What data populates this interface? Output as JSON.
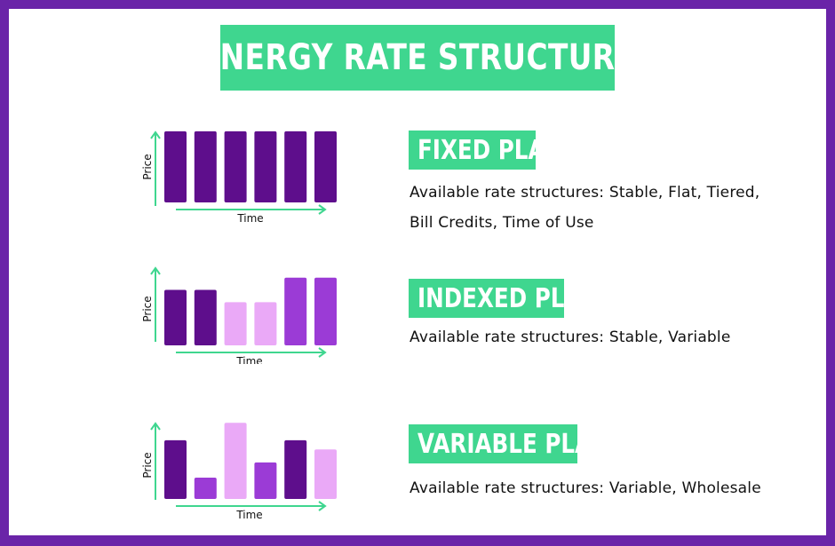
{
  "title": "ENERGY RATE STRUCTURE",
  "colors": {
    "border": "#6a24a8",
    "accent_green": "#3fd68f",
    "bar_dark": "#5e0e8c",
    "bar_mid": "#9b3bd6",
    "bar_light": "#eaa9f7"
  },
  "plans": [
    {
      "label": "FIXED PLAN",
      "description_lines": [
        "Available rate structures: Stable, Flat, Tiered,",
        "Bill Credits, Time of Use"
      ]
    },
    {
      "label": "INDEXED PLAN",
      "description_lines": [
        "Available rate structures: Stable, Variable"
      ]
    },
    {
      "label": "VARIABLE PLAN",
      "description_lines": [
        "Available rate structures: Variable, Wholesale"
      ]
    }
  ],
  "chart_data": [
    {
      "type": "bar",
      "xlabel": "Time",
      "ylabel": "Price",
      "ylim": [
        0,
        10
      ],
      "values": [
        7.7,
        7.7,
        7.7,
        7.7,
        7.7,
        7.7
      ],
      "colors": [
        "dark",
        "dark",
        "dark",
        "dark",
        "dark",
        "dark"
      ]
    },
    {
      "type": "bar",
      "xlabel": "Time",
      "ylabel": "Price",
      "ylim": [
        0,
        10
      ],
      "values": [
        7.7,
        7.7,
        6.0,
        6.0,
        9.4,
        9.4
      ],
      "colors": [
        "dark",
        "dark",
        "light",
        "light",
        "mid",
        "mid"
      ]
    },
    {
      "type": "bar",
      "xlabel": "Time",
      "ylabel": "Price",
      "ylim": [
        0,
        10
      ],
      "values": [
        7.7,
        2.8,
        10.0,
        4.8,
        7.7,
        6.5
      ],
      "colors": [
        "dark",
        "mid",
        "light",
        "mid",
        "dark",
        "light"
      ]
    }
  ]
}
